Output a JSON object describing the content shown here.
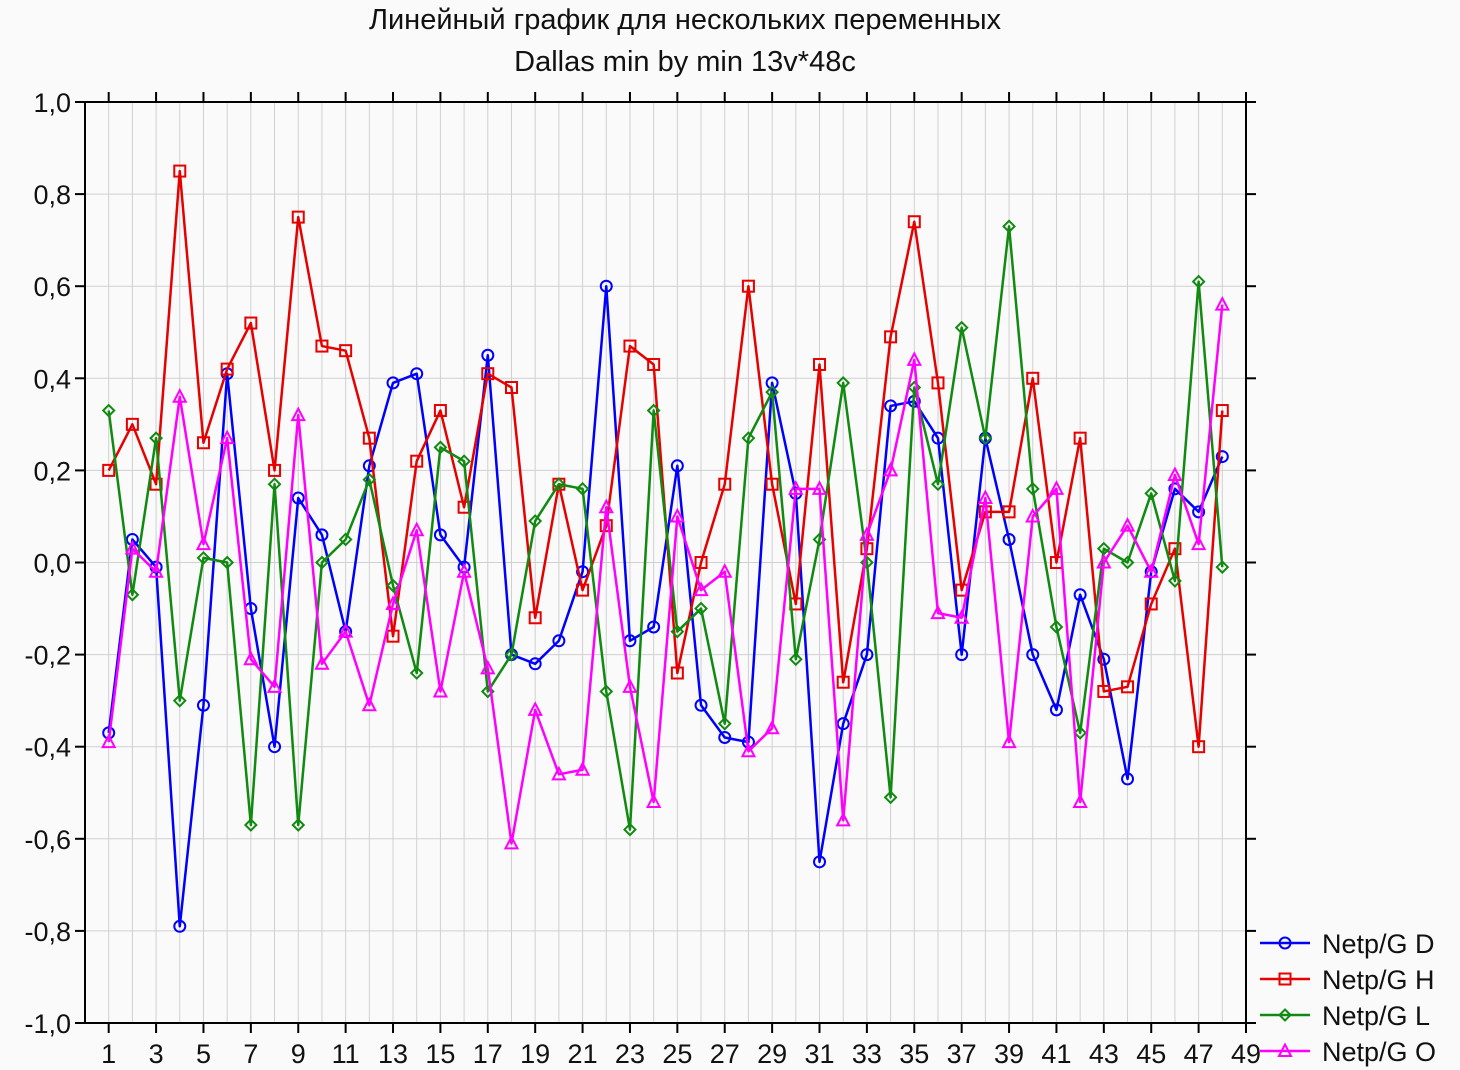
{
  "chart_data": {
    "type": "line",
    "title": "Линейный график для нескольких переменных",
    "subtitle": "Dallas min by min 13v*48c",
    "xlabel": "",
    "ylabel": "",
    "ylim": [
      -1.0,
      1.0
    ],
    "xlim": [
      0,
      49
    ],
    "y_ticks": [
      "-1,0",
      "-0,8",
      "-0,6",
      "-0,4",
      "-0,2",
      "0,0",
      "0,2",
      "0,4",
      "0,6",
      "0,8",
      "1,0"
    ],
    "x_ticks": [
      "1",
      "3",
      "5",
      "7",
      "9",
      "11",
      "13",
      "15",
      "17",
      "19",
      "21",
      "23",
      "25",
      "27",
      "29",
      "31",
      "33",
      "35",
      "37",
      "39",
      "41",
      "43",
      "45",
      "47",
      "49"
    ],
    "grid": true,
    "legend_position": "bottom-right",
    "x": [
      1,
      2,
      3,
      4,
      5,
      6,
      7,
      8,
      9,
      10,
      11,
      12,
      13,
      14,
      15,
      16,
      17,
      18,
      19,
      20,
      21,
      22,
      23,
      24,
      25,
      26,
      27,
      28,
      29,
      30,
      31,
      32,
      33,
      34,
      35,
      36,
      37,
      38,
      39,
      40,
      41,
      42,
      43,
      44,
      45,
      46,
      47,
      48
    ],
    "series": [
      {
        "name": "Netp/G D",
        "color": "#0000ff",
        "marker": "circle",
        "values": [
          -0.37,
          0.05,
          -0.01,
          -0.79,
          -0.31,
          0.41,
          -0.1,
          -0.4,
          0.14,
          0.06,
          -0.15,
          0.21,
          0.39,
          0.41,
          0.06,
          -0.01,
          0.45,
          -0.2,
          -0.22,
          -0.17,
          -0.02,
          0.6,
          -0.17,
          -0.14,
          0.21,
          -0.31,
          -0.38,
          -0.39,
          0.39,
          0.15,
          -0.65,
          -0.35,
          -0.2,
          0.34,
          0.35,
          0.27,
          -0.2,
          0.27,
          0.05,
          -0.2,
          -0.32,
          -0.07,
          -0.21,
          -0.47,
          -0.02,
          0.16,
          0.11,
          0.23
        ]
      },
      {
        "name": "Netp/G H",
        "color": "#e60000",
        "marker": "square",
        "values": [
          0.2,
          0.3,
          0.17,
          0.85,
          0.26,
          0.42,
          0.52,
          0.2,
          0.75,
          0.47,
          0.46,
          0.27,
          -0.16,
          0.22,
          0.33,
          0.12,
          0.41,
          0.38,
          -0.12,
          0.17,
          -0.06,
          0.08,
          0.47,
          0.43,
          -0.24,
          0.0,
          0.17,
          0.6,
          0.17,
          -0.09,
          0.43,
          -0.26,
          0.03,
          0.49,
          0.74,
          0.39,
          -0.06,
          0.11,
          0.11,
          0.4,
          0.0,
          0.27,
          -0.28,
          -0.27,
          -0.09,
          0.03,
          -0.4,
          0.33
        ]
      },
      {
        "name": "Netp/G L",
        "color": "#108a10",
        "marker": "diamond",
        "values": [
          0.33,
          -0.07,
          0.27,
          -0.3,
          0.01,
          0.0,
          -0.57,
          0.17,
          -0.57,
          0.0,
          0.05,
          0.18,
          -0.05,
          -0.24,
          0.25,
          0.22,
          -0.28,
          -0.2,
          0.09,
          0.17,
          0.16,
          -0.28,
          -0.58,
          0.33,
          -0.15,
          -0.1,
          -0.35,
          0.27,
          0.37,
          -0.21,
          0.05,
          0.39,
          0.0,
          -0.51,
          0.38,
          0.17,
          0.51,
          0.27,
          0.73,
          0.16,
          -0.14,
          -0.37,
          0.03,
          0.0,
          0.15,
          -0.04,
          0.61,
          -0.01
        ]
      },
      {
        "name": "Netp/G O",
        "color": "#ff00ff",
        "marker": "triangle",
        "values": [
          -0.39,
          0.03,
          -0.02,
          0.36,
          0.04,
          0.27,
          -0.21,
          -0.27,
          0.32,
          -0.22,
          -0.15,
          -0.31,
          -0.09,
          0.07,
          -0.28,
          -0.02,
          -0.23,
          -0.61,
          -0.32,
          -0.46,
          -0.45,
          0.12,
          -0.27,
          -0.52,
          0.1,
          -0.06,
          -0.02,
          -0.41,
          -0.36,
          0.16,
          0.16,
          -0.56,
          0.06,
          0.2,
          0.44,
          -0.11,
          -0.12,
          0.14,
          -0.39,
          0.1,
          0.16,
          -0.52,
          0.0,
          0.08,
          -0.02,
          0.19,
          0.04,
          0.56
        ]
      }
    ]
  }
}
